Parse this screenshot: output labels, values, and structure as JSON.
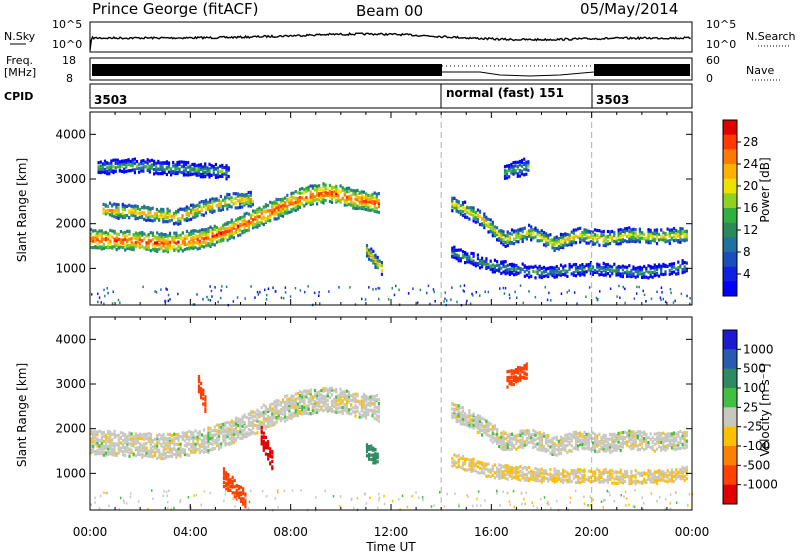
{
  "header": {
    "station": "Prince George (fitACF)",
    "beam": "Beam 00",
    "date": "05/May/2014"
  },
  "strips": {
    "nsky_label": "N.Sky",
    "nsky_ticks": [
      "10^5",
      "10^0"
    ],
    "nsearch_label": "N.Search",
    "nsearch_ticks": [
      "10^5",
      "10^0"
    ],
    "freq_label": "Freq.",
    "freq_unit": "[MHz]",
    "freq_ticks": [
      "18",
      "8"
    ],
    "nave_label": "Nave",
    "nave_ticks": [
      "60",
      "0"
    ],
    "cpid_label": "CPID",
    "cpid_segments": [
      {
        "text": "3503",
        "start_hour": 0,
        "end_hour": 14
      },
      {
        "text": "normal (fast) 151",
        "start_hour": 14,
        "end_hour": 20
      },
      {
        "text": "3503",
        "start_hour": 20,
        "end_hour": 24
      }
    ]
  },
  "chart_data": [
    {
      "type": "heatmap",
      "name": "power",
      "ylabel": "Slant Range [km]",
      "xlabel": "",
      "x_ticks": [
        "00:00",
        "04:00",
        "08:00",
        "12:00",
        "16:00",
        "20:00",
        "00:00"
      ],
      "xlim_hours": [
        0,
        24
      ],
      "y_ticks": [
        1000,
        2000,
        3000,
        4000
      ],
      "ylim": [
        180,
        4500
      ],
      "colorbar": {
        "label": "Power [dB]",
        "ticks": [
          "28",
          "24",
          "20",
          "16",
          "12",
          "8",
          "4"
        ],
        "colors": [
          "#e00000",
          "#ff3a00",
          "#ff7a00",
          "#ffb000",
          "#f0e000",
          "#90d020",
          "#30b040",
          "#2a8a5a",
          "#2070a0",
          "#1a4ec0",
          "#1020e0",
          "#0000ff"
        ]
      },
      "bands": [
        {
          "points": [
            [
              0.0,
              1650
            ],
            [
              1.5,
              1620
            ],
            [
              3.0,
              1560
            ],
            [
              4.5,
              1650
            ],
            [
              5.5,
              1850
            ],
            [
              6.5,
              2100
            ],
            [
              7.5,
              2350
            ],
            [
              8.5,
              2600
            ],
            [
              9.5,
              2700
            ],
            [
              10.5,
              2550
            ],
            [
              11.5,
              2450
            ]
          ],
          "power_db": 22,
          "width_km": 380
        },
        {
          "points": [
            [
              0.5,
              2300
            ],
            [
              2.0,
              2250
            ],
            [
              3.5,
              2150
            ],
            [
              4.5,
              2350
            ],
            [
              5.5,
              2500
            ],
            [
              6.5,
              2550
            ]
          ],
          "power_db": 18,
          "width_km": 280
        },
        {
          "points": [
            [
              0.3,
              3250
            ],
            [
              1.5,
              3300
            ],
            [
              3.0,
              3250
            ],
            [
              4.5,
              3200
            ],
            [
              5.5,
              3150
            ]
          ],
          "power_db": 10,
          "width_km": 250
        },
        {
          "points": [
            [
              14.4,
              2450
            ],
            [
              15.5,
              2150
            ],
            [
              16.5,
              1650
            ],
            [
              17.5,
              1800
            ],
            [
              18.5,
              1550
            ],
            [
              19.5,
              1750
            ],
            [
              20.5,
              1650
            ],
            [
              21.5,
              1750
            ],
            [
              22.5,
              1700
            ],
            [
              23.8,
              1750
            ]
          ],
          "power_db": 16,
          "width_km": 280
        },
        {
          "points": [
            [
              14.4,
              1350
            ],
            [
              16.0,
              1050
            ],
            [
              18.0,
              900
            ],
            [
              20.0,
              1000
            ],
            [
              22.0,
              900
            ],
            [
              23.8,
              1050
            ]
          ],
          "power_db": 9,
          "width_km": 220
        },
        {
          "points": [
            [
              16.5,
              3150
            ],
            [
              17.5,
              3300
            ]
          ],
          "power_db": 10,
          "width_km": 300
        },
        {
          "points": [
            [
              11.0,
              1400
            ],
            [
              11.6,
              1000
            ]
          ],
          "power_db": 18,
          "width_km": 250
        }
      ],
      "mode_change_hours": [
        14,
        20
      ]
    },
    {
      "type": "heatmap",
      "name": "velocity",
      "ylabel": "Slant Range [km]",
      "xlabel": "Time UT",
      "x_ticks": [
        "00:00",
        "04:00",
        "08:00",
        "12:00",
        "16:00",
        "20:00",
        "00:00"
      ],
      "xlim_hours": [
        0,
        24
      ],
      "y_ticks": [
        1000,
        2000,
        3000,
        4000
      ],
      "ylim": [
        180,
        4500
      ],
      "colorbar": {
        "label": "Velocity [m s⁻¹]",
        "ticks": [
          "1000",
          "500",
          "100",
          "25",
          "-25",
          "-100",
          "-500",
          "-1000"
        ],
        "colors": [
          "#1a1ad0",
          "#2a5ab0",
          "#2e8a60",
          "#40c040",
          "#c8c8c0",
          "#ffc000",
          "#ff8000",
          "#ff4000",
          "#e00000"
        ]
      },
      "bands": [
        {
          "points": [
            [
              0.0,
              1700
            ],
            [
              1.5,
              1650
            ],
            [
              3.0,
              1600
            ],
            [
              4.5,
              1700
            ],
            [
              5.5,
              1900
            ],
            [
              6.5,
              2150
            ],
            [
              7.5,
              2400
            ],
            [
              8.5,
              2600
            ],
            [
              9.5,
              2650
            ],
            [
              10.5,
              2550
            ],
            [
              11.5,
              2450
            ]
          ],
          "velocity": 0,
          "width_km": 500
        },
        {
          "points": [
            [
              14.4,
              2400
            ],
            [
              15.5,
              2100
            ],
            [
              16.5,
              1700
            ],
            [
              17.5,
              1800
            ],
            [
              18.5,
              1600
            ],
            [
              19.5,
              1750
            ],
            [
              20.5,
              1650
            ],
            [
              21.5,
              1750
            ],
            [
              22.5,
              1700
            ],
            [
              23.8,
              1750
            ]
          ],
          "velocity": 0,
          "width_km": 350
        },
        {
          "points": [
            [
              14.4,
              1300
            ],
            [
              16.0,
              1050
            ],
            [
              18.0,
              950
            ],
            [
              20.0,
              950
            ],
            [
              22.0,
              900
            ],
            [
              23.8,
              1000
            ]
          ],
          "velocity": -20,
          "width_km": 250
        },
        {
          "points": [
            [
              4.3,
              3000
            ],
            [
              4.6,
              2500
            ]
          ],
          "velocity": -400,
          "width_km": 350
        },
        {
          "points": [
            [
              6.8,
              1800
            ],
            [
              7.3,
              1200
            ]
          ],
          "velocity": -1000,
          "width_km": 400
        },
        {
          "points": [
            [
              5.3,
              900
            ],
            [
              6.2,
              400
            ]
          ],
          "velocity": -500,
          "width_km": 350
        },
        {
          "points": [
            [
              16.6,
              3100
            ],
            [
              17.4,
              3300
            ]
          ],
          "velocity": -400,
          "width_km": 300
        },
        {
          "points": [
            [
              11.0,
              1500
            ],
            [
              11.5,
              1300
            ]
          ],
          "velocity": 150,
          "width_km": 300
        }
      ],
      "mode_change_hours": [
        14,
        20
      ]
    }
  ]
}
